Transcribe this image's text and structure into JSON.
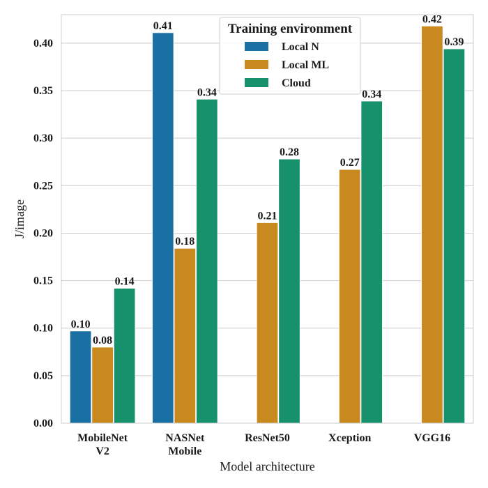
{
  "chart_data": {
    "type": "bar",
    "title": "",
    "xlabel": "Model architecture",
    "ylabel": "J/image",
    "ylim": [
      0,
      0.43
    ],
    "yticks": [
      "0.00",
      "0.05",
      "0.10",
      "0.15",
      "0.20",
      "0.25",
      "0.30",
      "0.35",
      "0.40"
    ],
    "ytick_values": [
      0,
      0.05,
      0.1,
      0.15,
      0.2,
      0.25,
      0.3,
      0.35,
      0.4
    ],
    "grid": true,
    "legend_position": "top-center",
    "legend_title": "Training environment",
    "categories": [
      [
        "MobileNet",
        "V2"
      ],
      [
        "NASNet",
        "Mobile"
      ],
      [
        "ResNet50"
      ],
      [
        "Xception"
      ],
      [
        "VGG16"
      ]
    ],
    "series": [
      {
        "name": "Local N",
        "color": "#1a6fa3",
        "values": [
          0.097,
          0.411,
          null,
          null,
          null
        ],
        "labels": [
          "0.10",
          "0.41",
          null,
          null,
          null
        ]
      },
      {
        "name": "Local ML",
        "color": "#c8891e",
        "values": [
          0.08,
          0.184,
          0.211,
          0.267,
          0.418
        ],
        "labels": [
          "0.08",
          "0.18",
          "0.21",
          "0.27",
          "0.42"
        ]
      },
      {
        "name": "Cloud",
        "color": "#17916b",
        "values": [
          0.142,
          0.341,
          0.278,
          0.339,
          0.394
        ],
        "labels": [
          "0.14",
          "0.34",
          "0.28",
          "0.34",
          "0.39"
        ]
      }
    ]
  }
}
